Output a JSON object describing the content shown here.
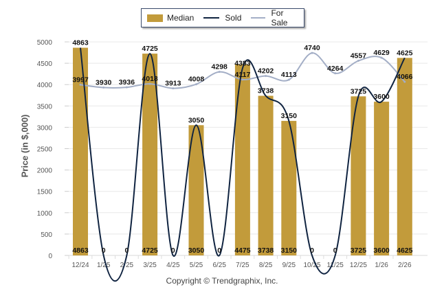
{
  "chart_data": {
    "type": "bar",
    "title": "",
    "xlabel": "",
    "ylabel": "Price (in $,000)",
    "ylim": [
      0,
      5000
    ],
    "yticks": [
      0,
      500,
      1000,
      1500,
      2000,
      2500,
      3000,
      3500,
      4000,
      4500,
      5000
    ],
    "grid": true,
    "legend_position": "top-center",
    "categories": [
      "12/24",
      "1/25",
      "2/25",
      "3/25",
      "4/25",
      "5/25",
      "6/25",
      "7/25",
      "8/25",
      "9/25",
      "10/25",
      "11/25",
      "12/25",
      "1/26",
      "2/26"
    ],
    "series": [
      {
        "name": "Median",
        "kind": "bar",
        "color": "#c29b3b",
        "values": [
          4863,
          0,
          0,
          4725,
          0,
          3050,
          0,
          4475,
          3738,
          3150,
          0,
          0,
          3725,
          3600,
          4625
        ]
      },
      {
        "name": "Sold",
        "kind": "line",
        "color": "#0f2340",
        "values": [
          4863,
          0,
          0,
          4725,
          0,
          3050,
          0,
          4383,
          3738,
          3150,
          0,
          0,
          3725,
          3600,
          4625
        ]
      },
      {
        "name": "For Sale",
        "kind": "line",
        "color": "#a3aec6",
        "values": [
          3997,
          3930,
          3936,
          4018,
          3913,
          4008,
          4298,
          4117,
          4202,
          4113,
          4740,
          4264,
          4557,
          4629,
          4066
        ]
      }
    ]
  },
  "legend": {
    "median": "Median",
    "sold": "Sold",
    "for_sale": "For Sale"
  },
  "copyright": "Copyright © Trendgraphix, Inc."
}
